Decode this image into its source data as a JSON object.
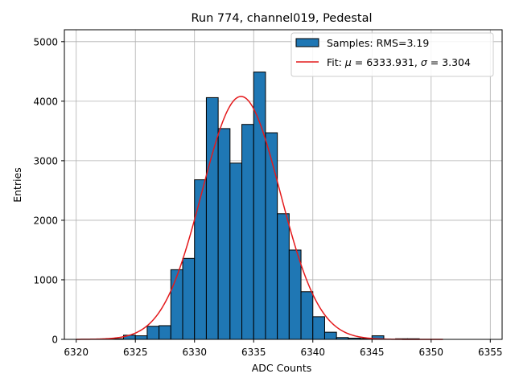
{
  "chart_data": {
    "type": "bar",
    "title": "Run 774, channel019, Pedestal",
    "xlabel": "ADC Counts",
    "ylabel": "Entries",
    "xlim": [
      6319,
      6356
    ],
    "ylim": [
      0,
      5200
    ],
    "xticks": [
      6320,
      6325,
      6330,
      6335,
      6340,
      6345,
      6350,
      6355
    ],
    "yticks": [
      0,
      1000,
      2000,
      3000,
      4000,
      5000
    ],
    "grid": true,
    "legend_placement": "top-right",
    "bin_width": 1,
    "histogram": {
      "name": "Samples: RMS=3.19",
      "color": "#1f77b4",
      "bins": [
        {
          "x": 6322.5,
          "value": 5
        },
        {
          "x": 6323.5,
          "value": 10
        },
        {
          "x": 6324.5,
          "value": 70
        },
        {
          "x": 6325.5,
          "value": 60
        },
        {
          "x": 6326.5,
          "value": 220
        },
        {
          "x": 6327.5,
          "value": 230
        },
        {
          "x": 6328.5,
          "value": 1170
        },
        {
          "x": 6329.5,
          "value": 1360
        },
        {
          "x": 6330.5,
          "value": 2680
        },
        {
          "x": 6331.5,
          "value": 4060
        },
        {
          "x": 6332.5,
          "value": 3540
        },
        {
          "x": 6333.5,
          "value": 2960
        },
        {
          "x": 6334.5,
          "value": 3610
        },
        {
          "x": 6335.5,
          "value": 4490
        },
        {
          "x": 6336.5,
          "value": 3470
        },
        {
          "x": 6337.5,
          "value": 2110
        },
        {
          "x": 6338.5,
          "value": 1500
        },
        {
          "x": 6339.5,
          "value": 800
        },
        {
          "x": 6340.5,
          "value": 380
        },
        {
          "x": 6341.5,
          "value": 120
        },
        {
          "x": 6342.5,
          "value": 30
        },
        {
          "x": 6343.5,
          "value": 20
        },
        {
          "x": 6344.5,
          "value": 15
        },
        {
          "x": 6345.5,
          "value": 60
        },
        {
          "x": 6347.5,
          "value": 10
        },
        {
          "x": 6348.5,
          "value": 10
        }
      ]
    },
    "fit": {
      "name": "Fit: μ = 6333.931, σ = 3.304",
      "name_parts": [
        "Fit: ",
        "μ",
        " = 6333.931, ",
        "σ",
        " = 3.304"
      ],
      "color": "#e41a1c",
      "mu": 6333.931,
      "sigma": 3.304,
      "amplitude": 4080,
      "x_range": [
        6320,
        6351
      ]
    }
  }
}
